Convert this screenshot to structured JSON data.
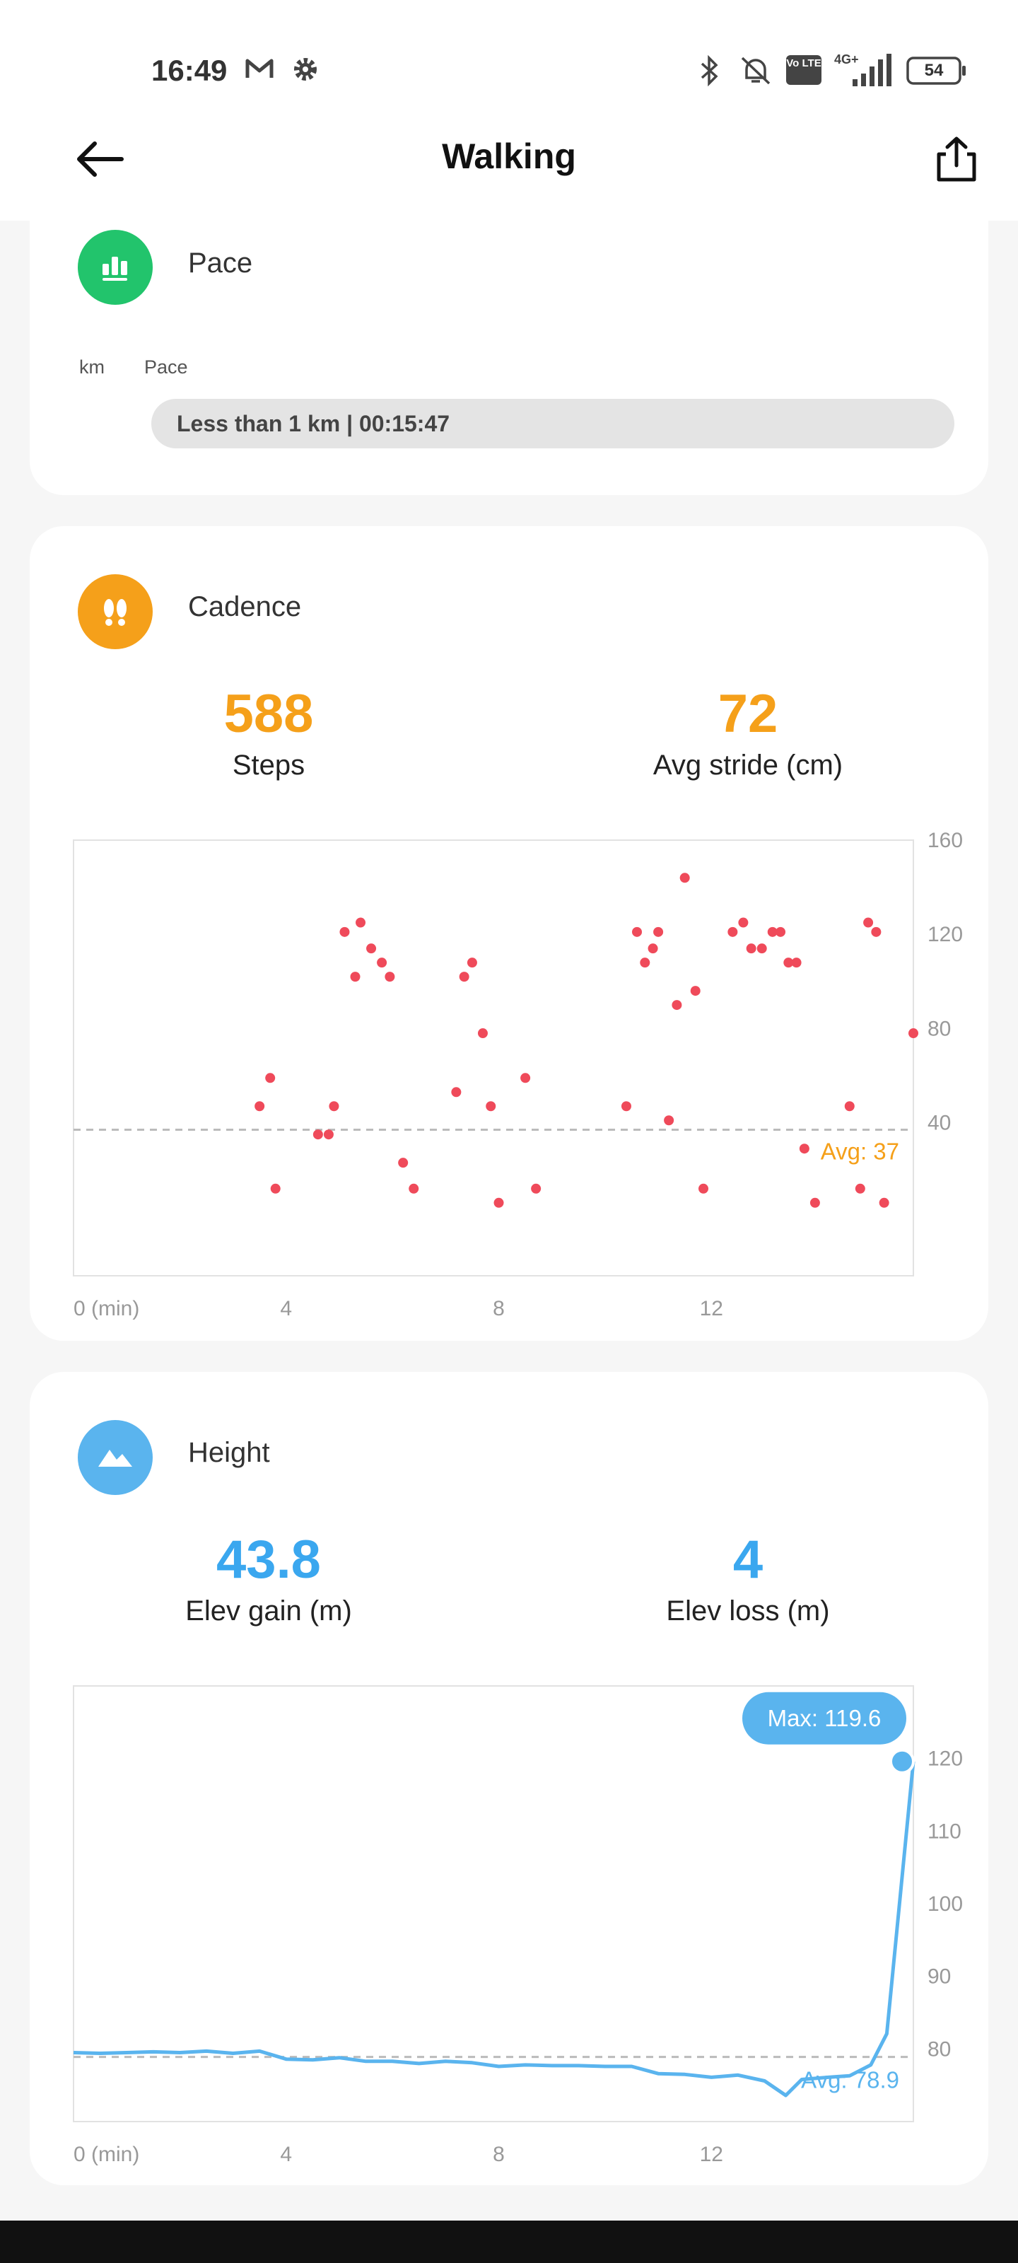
{
  "status_bar": {
    "time": "16:49",
    "left_icons": [
      "gmail-icon",
      "settings-gear-icon"
    ],
    "right_icons": [
      "bluetooth-icon",
      "mute-icon",
      "volte-icon",
      "signal-4g-plus-icon"
    ],
    "network_label": "4G+",
    "volte_label": "Vo LTE",
    "battery": "54"
  },
  "header": {
    "title": "Walking",
    "back_icon": "arrow-left-icon",
    "share_icon": "share-icon"
  },
  "pace": {
    "title": "Pace",
    "icon": "bar-chart-icon",
    "icon_color": "#22c46c",
    "col_km": "km",
    "col_pace": "Pace",
    "row_label": "Less than 1 km | 00:15:47"
  },
  "cadence": {
    "title": "Cadence",
    "icon": "footprints-icon",
    "accent": "#f5a01a",
    "steps_value": "588",
    "steps_label": "Steps",
    "stride_value": "72",
    "stride_label": "Avg stride (cm)",
    "avg_label": "Avg: 37"
  },
  "height": {
    "title": "Height",
    "icon": "mountain-icon",
    "accent": "#3aa7ef",
    "gain_value": "43.8",
    "gain_label": "Elev gain (m)",
    "loss_value": "4",
    "loss_label": "Elev loss (m)",
    "max_label": "Max: 119.6",
    "avg_label": "Avg: 78.9"
  },
  "chart_data": [
    {
      "type": "scatter",
      "name": "cadence",
      "xlabel": "0 (min)",
      "x_ticks": [
        "0 (min)",
        "4",
        "8",
        "12"
      ],
      "y_ticks": [
        "160",
        "120",
        "80",
        "40"
      ],
      "xlim": [
        0,
        15.8
      ],
      "ylim": [
        -25,
        160
      ],
      "avg": 37,
      "avg_label": "Avg: 37",
      "point_color": "#ef4a5a",
      "points": [
        [
          3.5,
          47
        ],
        [
          3.7,
          59
        ],
        [
          3.8,
          12
        ],
        [
          4.6,
          35
        ],
        [
          4.8,
          35
        ],
        [
          4.9,
          47
        ],
        [
          5.1,
          121
        ],
        [
          5.3,
          102
        ],
        [
          5.4,
          125
        ],
        [
          5.6,
          114
        ],
        [
          5.8,
          108
        ],
        [
          5.95,
          102
        ],
        [
          6.2,
          23
        ],
        [
          6.4,
          12
        ],
        [
          7.2,
          53
        ],
        [
          7.35,
          102
        ],
        [
          7.5,
          108
        ],
        [
          7.7,
          78
        ],
        [
          7.85,
          47
        ],
        [
          8.0,
          6
        ],
        [
          8.5,
          59
        ],
        [
          8.7,
          12
        ],
        [
          10.4,
          47
        ],
        [
          10.6,
          121
        ],
        [
          10.75,
          108
        ],
        [
          10.9,
          114
        ],
        [
          11.0,
          121
        ],
        [
          11.2,
          41
        ],
        [
          11.35,
          90
        ],
        [
          11.5,
          144
        ],
        [
          11.7,
          96
        ],
        [
          11.85,
          12
        ],
        [
          12.4,
          121
        ],
        [
          12.6,
          125
        ],
        [
          12.75,
          114
        ],
        [
          12.95,
          114
        ],
        [
          13.15,
          121
        ],
        [
          13.3,
          121
        ],
        [
          13.45,
          108
        ],
        [
          13.6,
          108
        ],
        [
          13.75,
          29
        ],
        [
          13.95,
          6
        ],
        [
          14.6,
          47
        ],
        [
          14.8,
          12
        ],
        [
          14.95,
          125
        ],
        [
          15.1,
          121
        ],
        [
          15.25,
          6
        ],
        [
          15.8,
          78
        ]
      ]
    },
    {
      "type": "line",
      "name": "height",
      "xlabel": "0 (min)",
      "x_ticks": [
        "0 (min)",
        "4",
        "8",
        "12"
      ],
      "y_ticks": [
        "120",
        "110",
        "100",
        "90",
        "80"
      ],
      "xlim": [
        0,
        15.8
      ],
      "ylim": [
        70,
        130
      ],
      "avg": 78.9,
      "avg_label": "Avg: 78.9",
      "max": 119.6,
      "max_label": "Max: 119.6",
      "line_color": "#5ab4ee",
      "points": [
        [
          0,
          79.5
        ],
        [
          0.5,
          79.4
        ],
        [
          1,
          79.5
        ],
        [
          1.5,
          79.6
        ],
        [
          2,
          79.5
        ],
        [
          2.5,
          79.7
        ],
        [
          3,
          79.4
        ],
        [
          3.5,
          79.7
        ],
        [
          4,
          78.6
        ],
        [
          4.5,
          78.5
        ],
        [
          5,
          78.8
        ],
        [
          5.5,
          78.3
        ],
        [
          6,
          78.3
        ],
        [
          6.5,
          78.0
        ],
        [
          7,
          78.3
        ],
        [
          7.5,
          78.1
        ],
        [
          8,
          77.6
        ],
        [
          8.5,
          77.8
        ],
        [
          9,
          77.7
        ],
        [
          9.5,
          77.7
        ],
        [
          10,
          77.6
        ],
        [
          10.5,
          77.6
        ],
        [
          11,
          76.6
        ],
        [
          11.5,
          76.5
        ],
        [
          12,
          76.1
        ],
        [
          12.5,
          76.4
        ],
        [
          13,
          75.6
        ],
        [
          13.4,
          73.6
        ],
        [
          13.7,
          75.8
        ],
        [
          14.2,
          76.1
        ],
        [
          14.6,
          76.3
        ],
        [
          15.0,
          77.8
        ],
        [
          15.3,
          82.1
        ],
        [
          15.8,
          119.6
        ]
      ]
    }
  ]
}
